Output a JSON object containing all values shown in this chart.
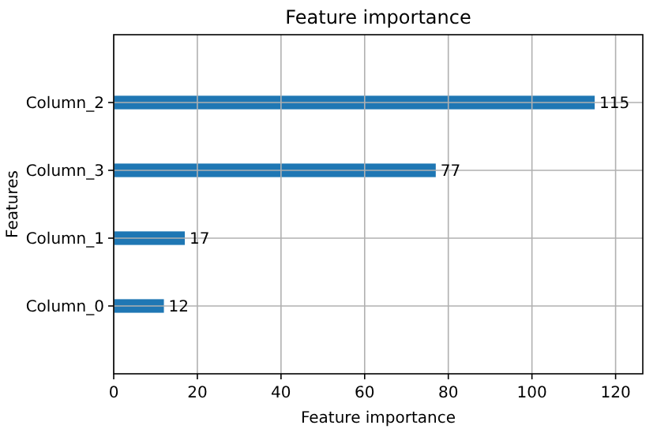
{
  "chart_data": {
    "type": "bar",
    "orientation": "horizontal",
    "title": "Feature importance",
    "xlabel": "Feature importance",
    "ylabel": "Features",
    "categories": [
      "Column_2",
      "Column_3",
      "Column_1",
      "Column_0"
    ],
    "values": [
      115,
      77,
      17,
      12
    ],
    "color": "#1f77b4",
    "xlim": [
      0,
      126.5
    ],
    "xticks": [
      0,
      20,
      40,
      60,
      80,
      100,
      120
    ],
    "grid": true,
    "data_labels": true
  }
}
